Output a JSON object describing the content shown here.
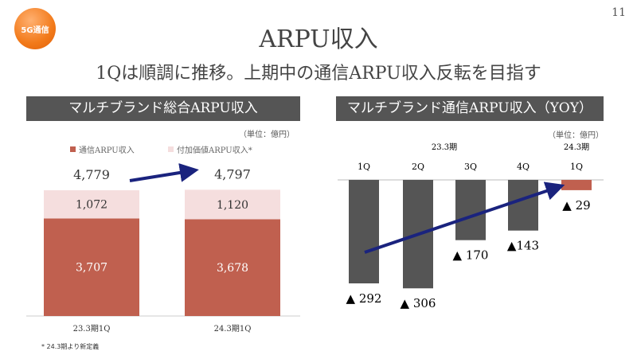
{
  "badge": "5G通信",
  "page_number": "11",
  "title": "ARPU収入",
  "subtitle": "1Qは順調に推移。上期中の通信ARPU収入反転を目指す",
  "left_panel": {
    "header": "マルチブランド総合ARPU収入",
    "unit": "（単位：億円）",
    "legend": [
      "通信ARPU収入",
      "付加価値ARPU収入*"
    ],
    "footnote": "* 24.3期より新定義"
  },
  "right_panel": {
    "header": "マルチブランド通信ARPU収入（YOY）",
    "unit": "（単位：億円）"
  },
  "colors": {
    "comm": "#c0604f",
    "value_added": "#f5dede",
    "bar_gray": "#555555",
    "arrow": "#1a237e"
  },
  "chart_data": [
    {
      "type": "bar",
      "stacked": true,
      "categories": [
        "23.3期1Q",
        "24.3期1Q"
      ],
      "series": [
        {
          "name": "通信ARPU収入",
          "values": [
            3707,
            3678
          ]
        },
        {
          "name": "付加価値ARPU収入*",
          "values": [
            1072,
            1120
          ]
        }
      ],
      "totals": [
        4779,
        4797
      ],
      "legend": "top"
    },
    {
      "type": "bar",
      "period_labels": [
        "23.3期",
        "24.3期"
      ],
      "categories": [
        "1Q",
        "2Q",
        "3Q",
        "4Q",
        "1Q"
      ],
      "values": [
        -292,
        -306,
        -170,
        -143,
        -29
      ],
      "labels": [
        "▲ 292",
        "▲ 306",
        "▲ 170",
        "▲143",
        "▲ 29"
      ]
    }
  ]
}
